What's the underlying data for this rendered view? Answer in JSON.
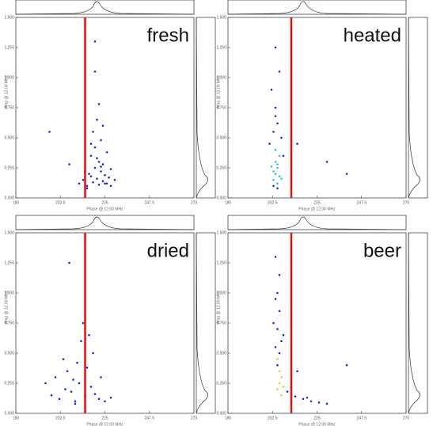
{
  "chart_data": [
    {
      "type": "scatter",
      "title": "fresh",
      "xlabel": "Phase @ 12.00 MHz",
      "ylabel": "Amp @ 12.00 MHz",
      "xlim": [
        180,
        270
      ],
      "ylim": [
        0,
        1.5
      ],
      "xticks": [
        180,
        202.5,
        225,
        247.5,
        270
      ],
      "yticks": [
        {
          "value": 0,
          "label": "0.000"
        },
        {
          "value": 0.25,
          "label": "0.250"
        },
        {
          "value": 0.5,
          "label": "0.500"
        },
        {
          "value": 0.75,
          "label": "0.750"
        },
        {
          "value": 1,
          "label": "1.000"
        },
        {
          "value": 1.25,
          "label": "1.250"
        },
        {
          "value": 1.5,
          "label": "1.500"
        }
      ],
      "vline": {
        "x": 215,
        "color": "#e01010"
      },
      "series": [
        {
          "color": "#1a2ad8",
          "x": [
            212,
            214,
            216,
            217,
            218,
            219,
            220,
            221,
            222,
            223,
            224,
            225,
            226,
            227,
            218,
            220,
            222,
            224,
            219,
            221,
            223,
            216,
            215,
            226,
            228,
            230,
            222,
            220,
            224,
            218,
            221,
            223,
            225,
            207,
            197,
            228,
            220
          ],
          "y": [
            0.12,
            0.15,
            0.1,
            0.2,
            0.18,
            0.13,
            0.25,
            0.16,
            0.11,
            0.22,
            0.14,
            0.19,
            0.12,
            0.17,
            0.35,
            0.42,
            0.3,
            0.28,
            0.55,
            0.65,
            0.48,
            0.08,
            0.22,
            0.38,
            0.1,
            0.15,
            0.78,
            1.05,
            0.6,
            0.45,
            0.33,
            0.26,
            0.12,
            0.28,
            0.55,
            0.24,
            1.3
          ]
        }
      ]
    },
    {
      "type": "scatter",
      "title": "heated",
      "xlabel": "Phase @ 12.00 MHz",
      "ylabel": "Amp @ 12.00 MHz",
      "xlim": [
        180,
        270
      ],
      "ylim": [
        0,
        1.5
      ],
      "xticks": [
        180,
        202.5,
        225,
        247.5,
        270
      ],
      "yticks": [
        {
          "value": 0,
          "label": "0.000"
        },
        {
          "value": 0.25,
          "label": "0.250"
        },
        {
          "value": 0.5,
          "label": "0.500"
        },
        {
          "value": 0.75,
          "label": "0.750"
        },
        {
          "value": 1,
          "label": "1.000"
        },
        {
          "value": 1.25,
          "label": "1.250"
        },
        {
          "value": 1.5,
          "label": "1.500"
        }
      ],
      "vline": {
        "x": 212,
        "color": "#e01010"
      },
      "series": [
        {
          "color": "#1a2ad8",
          "x": [
            201,
            203,
            205,
            207,
            204,
            202,
            206,
            208,
            204,
            203,
            230,
            240,
            215,
            205,
            204
          ],
          "y": [
            0.45,
            0.55,
            0.62,
            0.5,
            0.75,
            0.9,
            1.05,
            0.35,
            1.25,
            0.1,
            0.3,
            0.2,
            0.45,
            0.08,
            0.68
          ]
        },
        {
          "color": "#2ec4d0",
          "x": [
            203,
            204,
            205,
            206,
            204,
            205,
            203,
            206,
            205,
            204,
            207,
            202
          ],
          "y": [
            0.15,
            0.2,
            0.25,
            0.18,
            0.3,
            0.12,
            0.22,
            0.35,
            0.28,
            0.4,
            0.16,
            0.26
          ]
        }
      ]
    },
    {
      "type": "scatter",
      "title": "dried",
      "xlabel": "Phase @ 12.00 MHz",
      "ylabel": "Amp @ 12.00 MHz",
      "xlim": [
        180,
        270
      ],
      "ylim": [
        0,
        1.5
      ],
      "xticks": [
        180,
        202.5,
        225,
        247.5,
        270
      ],
      "yticks": [
        {
          "value": 0,
          "label": "0.000"
        },
        {
          "value": 0.25,
          "label": "0.250"
        },
        {
          "value": 0.5,
          "label": "0.500"
        },
        {
          "value": 0.75,
          "label": "0.750"
        },
        {
          "value": 1,
          "label": "1.000"
        },
        {
          "value": 1.25,
          "label": "1.250"
        },
        {
          "value": 1.5,
          "label": "1.500"
        }
      ],
      "vline": {
        "x": 215,
        "color": "#e01010"
      },
      "series": [
        {
          "color": "#1a2ad8",
          "x": [
            198,
            202,
            205,
            208,
            210,
            212,
            215,
            218,
            220,
            222,
            225,
            228,
            200,
            206,
            211,
            216,
            219,
            213,
            209,
            204,
            195,
            214,
            217,
            223,
            207,
            210
          ],
          "y": [
            0.15,
            0.12,
            0.2,
            0.18,
            0.1,
            0.25,
            0.14,
            0.22,
            0.16,
            0.12,
            0.1,
            0.13,
            0.3,
            0.35,
            0.42,
            0.38,
            0.5,
            0.6,
            0.28,
            0.45,
            0.25,
            0.75,
            0.65,
            0.3,
            1.25,
            0.08
          ]
        }
      ]
    },
    {
      "type": "scatter",
      "title": "beer",
      "xlabel": "Phase @ 12.00 MHz",
      "ylabel": "Amp @ 12.00 MHz",
      "xlim": [
        180,
        270
      ],
      "ylim": [
        0,
        1.5
      ],
      "xticks": [
        180,
        202.5,
        225,
        247.5,
        270
      ],
      "yticks": [
        {
          "value": 0,
          "label": "0.000"
        },
        {
          "value": 0.25,
          "label": "0.250"
        },
        {
          "value": 0.5,
          "label": "0.500"
        },
        {
          "value": 0.75,
          "label": "0.750"
        },
        {
          "value": 1,
          "label": "1.000"
        },
        {
          "value": 1.25,
          "label": "1.250"
        },
        {
          "value": 1.5,
          "label": "1.500"
        }
      ],
      "vline": {
        "x": 212,
        "color": "#e01010"
      },
      "series": [
        {
          "color": "#1a2ad8",
          "x": [
            204,
            205,
            206,
            205,
            206,
            204,
            207,
            205,
            210,
            214,
            218,
            222,
            226,
            230,
            212,
            220,
            204,
            206,
            203,
            215,
            240,
            208
          ],
          "y": [
            0.55,
            0.7,
            0.85,
            1.0,
            1.15,
            1.3,
            0.6,
            0.4,
            0.18,
            0.14,
            0.12,
            0.1,
            0.09,
            0.08,
            0.16,
            0.13,
            0.95,
            0.5,
            0.75,
            0.35,
            0.4,
            0.65
          ]
        },
        {
          "color": "#e8c830",
          "x": [
            205,
            206,
            207,
            206,
            205,
            208,
            207
          ],
          "y": [
            0.2,
            0.25,
            0.3,
            0.35,
            0.45,
            0.22,
            0.15
          ]
        }
      ]
    }
  ]
}
